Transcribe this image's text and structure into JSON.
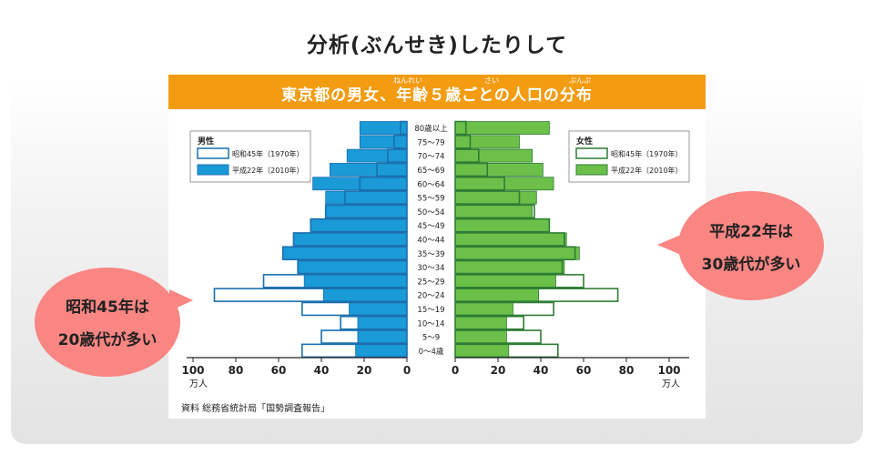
{
  "page": {
    "title": "分析(ぶんせき)したりして"
  },
  "banner": {
    "title": "東京都の男女、年齢５歳ごとの人口の分布",
    "ruby_nenrei": "ねんれい",
    "ruby_sai": "さい",
    "ruby_bunpu": "ぶんぷ"
  },
  "callouts": {
    "left_line1": "昭和45年は",
    "left_line2": "20歳代が多い",
    "right_line1": "平成22年は",
    "right_line2": "30歳代が多い"
  },
  "source_note": "資料 総務省統計局「国勢調査報告」",
  "colors": {
    "banner": "#f39c12",
    "male_fill": "#1a9ad6",
    "male_outline": "#1a6fae",
    "female_fill": "#6cc04a",
    "female_outline": "#2e7d32",
    "callout": "#f98683"
  },
  "chart_data": {
    "type": "bar",
    "subtype": "population-pyramid",
    "categories": [
      "0～4歳",
      "5～9",
      "10～14",
      "15～19",
      "20～24",
      "25～29",
      "30～34",
      "35～39",
      "40～44",
      "45～49",
      "50～54",
      "55～59",
      "60～64",
      "65～69",
      "70～74",
      "75～79",
      "80歳以上"
    ],
    "male": {
      "label": "男性",
      "series": [
        {
          "name": "昭和45年（1970年）",
          "style": "outline",
          "values": [
            49,
            40,
            31,
            49,
            90,
            67,
            51,
            58,
            53,
            45,
            38,
            29,
            22,
            14,
            9,
            6,
            3
          ]
        },
        {
          "name": "平成22年（2010年）",
          "style": "filled",
          "values": [
            24,
            23,
            23,
            27,
            39,
            48,
            51,
            58,
            53,
            45,
            38,
            38,
            44,
            36,
            28,
            22,
            22
          ]
        }
      ]
    },
    "female": {
      "label": "女性",
      "series": [
        {
          "name": "昭和45年（1970年）",
          "style": "outline",
          "values": [
            48,
            40,
            32,
            46,
            76,
            60,
            50,
            56,
            51,
            44,
            37,
            30,
            23,
            15,
            11,
            7,
            5
          ]
        },
        {
          "name": "平成22年（2010年）",
          "style": "filled",
          "values": [
            25,
            24,
            24,
            27,
            39,
            47,
            51,
            58,
            52,
            44,
            36,
            38,
            46,
            41,
            36,
            30,
            44
          ]
        }
      ]
    },
    "xlim": [
      0,
      100
    ],
    "x_ticks": [
      100,
      80,
      60,
      40,
      20,
      0
    ],
    "unit": "万人",
    "legend": "top-left (男性) / top-right (女性)"
  }
}
